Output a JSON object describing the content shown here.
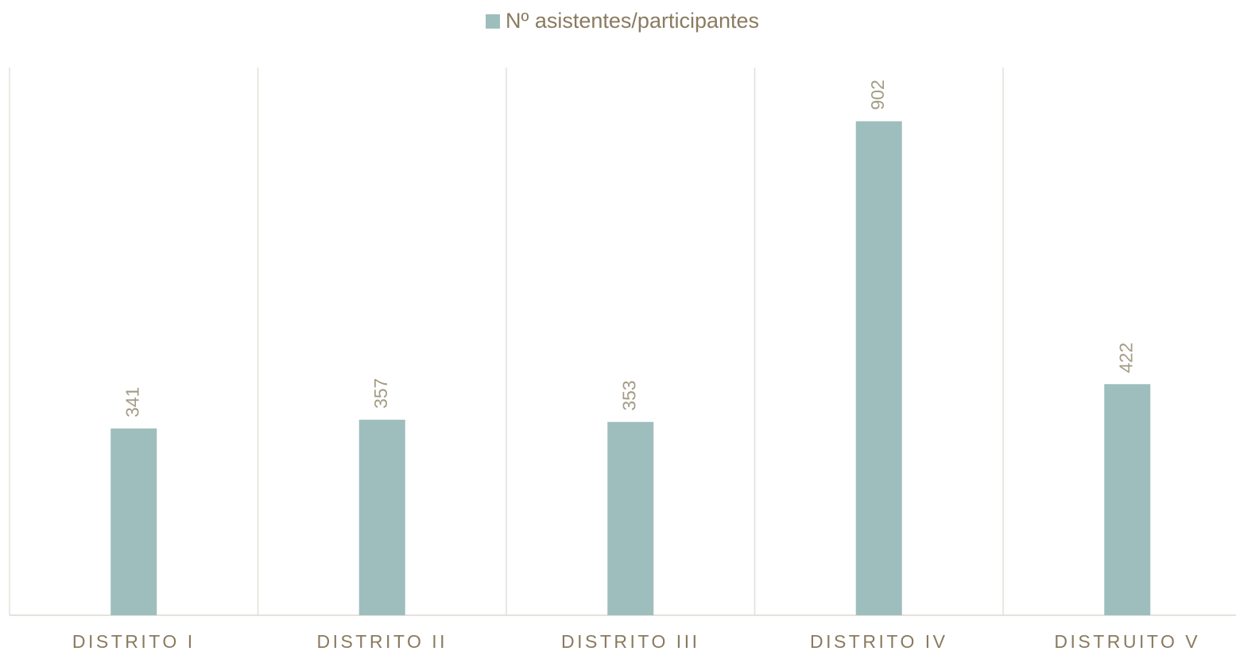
{
  "chart_data": {
    "type": "bar",
    "categories": [
      "DISTRITO I",
      "DISTRITO II",
      "DISTRITO III",
      "DISTRITO IV",
      "DISTRUITO V"
    ],
    "series": [
      {
        "name": "Nº asistentes/participantes",
        "color": "#9ebebd",
        "values": [
          341,
          357,
          353,
          902,
          422
        ]
      }
    ],
    "ylim": [
      0,
      1000
    ],
    "legend": "top"
  }
}
